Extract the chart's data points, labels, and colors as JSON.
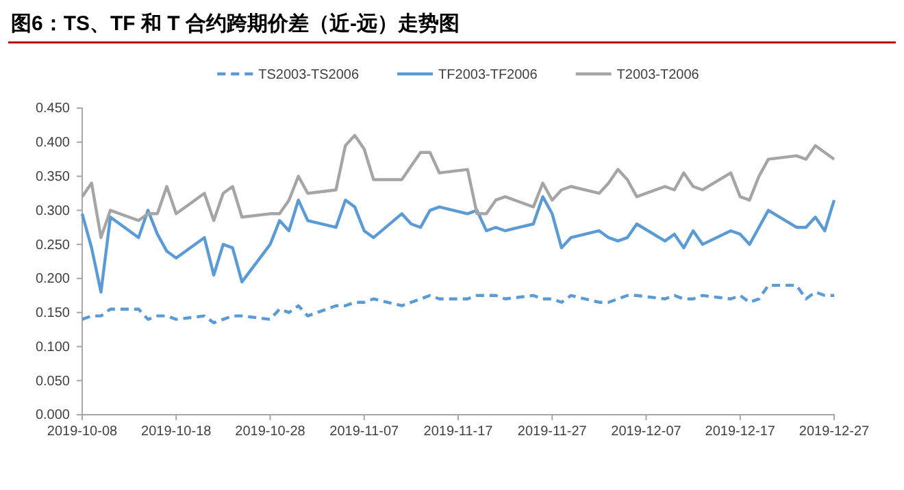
{
  "chart_data": {
    "type": "line",
    "title": "图6：TS、TF 和 T 合约跨期价差（近-远）走势图",
    "x": [
      "2019-10-08",
      "2019-10-09",
      "2019-10-10",
      "2019-10-11",
      "2019-10-14",
      "2019-10-15",
      "2019-10-16",
      "2019-10-17",
      "2019-10-18",
      "2019-10-21",
      "2019-10-22",
      "2019-10-23",
      "2019-10-24",
      "2019-10-25",
      "2019-10-28",
      "2019-10-29",
      "2019-10-30",
      "2019-10-31",
      "2019-11-01",
      "2019-11-04",
      "2019-11-05",
      "2019-11-06",
      "2019-11-07",
      "2019-11-08",
      "2019-11-11",
      "2019-11-12",
      "2019-11-13",
      "2019-11-14",
      "2019-11-15",
      "2019-11-18",
      "2019-11-19",
      "2019-11-20",
      "2019-11-21",
      "2019-11-22",
      "2019-11-25",
      "2019-11-26",
      "2019-11-27",
      "2019-11-28",
      "2019-11-29",
      "2019-12-02",
      "2019-12-03",
      "2019-12-04",
      "2019-12-05",
      "2019-12-06",
      "2019-12-09",
      "2019-12-10",
      "2019-12-11",
      "2019-12-12",
      "2019-12-13",
      "2019-12-16",
      "2019-12-17",
      "2019-12-18",
      "2019-12-19",
      "2019-12-20",
      "2019-12-23",
      "2019-12-24",
      "2019-12-25",
      "2019-12-26",
      "2019-12-27"
    ],
    "series": [
      {
        "name": "TS2003-TS2006",
        "color": "#5b9bd5",
        "line_style": "dashed",
        "values": [
          0.14,
          0.145,
          0.145,
          0.155,
          0.155,
          0.14,
          0.145,
          0.145,
          0.14,
          0.145,
          0.135,
          0.14,
          0.145,
          0.145,
          0.14,
          0.155,
          0.15,
          0.16,
          0.145,
          0.16,
          0.16,
          0.165,
          0.165,
          0.17,
          0.16,
          0.165,
          0.17,
          0.175,
          0.17,
          0.17,
          0.175,
          0.175,
          0.175,
          0.17,
          0.175,
          0.17,
          0.17,
          0.165,
          0.175,
          0.165,
          0.165,
          0.17,
          0.175,
          0.175,
          0.17,
          0.175,
          0.17,
          0.17,
          0.175,
          0.17,
          0.175,
          0.165,
          0.17,
          0.19,
          0.19,
          0.17,
          0.18,
          0.175,
          0.175
        ]
      },
      {
        "name": "TF2003-TF2006",
        "color": "#5b9bd5",
        "line_style": "solid",
        "values": [
          0.295,
          0.245,
          0.18,
          0.29,
          0.26,
          0.3,
          0.265,
          0.24,
          0.23,
          0.26,
          0.205,
          0.25,
          0.245,
          0.195,
          0.25,
          0.285,
          0.27,
          0.315,
          0.285,
          0.275,
          0.315,
          0.305,
          0.27,
          0.26,
          0.295,
          0.28,
          0.275,
          0.3,
          0.305,
          0.295,
          0.3,
          0.27,
          0.275,
          0.27,
          0.28,
          0.32,
          0.295,
          0.245,
          0.26,
          0.27,
          0.26,
          0.255,
          0.26,
          0.28,
          0.255,
          0.265,
          0.245,
          0.27,
          0.25,
          0.27,
          0.265,
          0.25,
          0.275,
          0.3,
          0.275,
          0.275,
          0.29,
          0.27,
          0.315
        ]
      },
      {
        "name": "T2003-T2006",
        "color": "#a5a5a5",
        "line_style": "solid",
        "values": [
          0.32,
          0.34,
          0.26,
          0.3,
          0.285,
          0.295,
          0.295,
          0.335,
          0.295,
          0.325,
          0.285,
          0.325,
          0.335,
          0.29,
          0.295,
          0.295,
          0.315,
          0.35,
          0.325,
          0.33,
          0.395,
          0.41,
          0.39,
          0.345,
          0.345,
          0.365,
          0.385,
          0.385,
          0.355,
          0.36,
          0.295,
          0.295,
          0.315,
          0.32,
          0.305,
          0.34,
          0.315,
          0.33,
          0.335,
          0.325,
          0.34,
          0.36,
          0.345,
          0.32,
          0.335,
          0.33,
          0.355,
          0.335,
          0.33,
          0.355,
          0.32,
          0.315,
          0.35,
          0.375,
          0.38,
          0.375,
          0.395,
          0.385,
          0.375
        ]
      }
    ],
    "xlim": [
      "2019-10-08",
      "2019-12-27"
    ],
    "xticks": [
      "2019-10-08",
      "2019-10-18",
      "2019-10-28",
      "2019-11-07",
      "2019-11-17",
      "2019-11-27",
      "2019-12-07",
      "2019-12-17",
      "2019-12-27"
    ],
    "ylim": [
      0,
      0.45
    ],
    "yticks": [
      {
        "value": 0,
        "label": "0.000"
      },
      {
        "value": 0.05,
        "label": "0.050"
      },
      {
        "value": 0.1,
        "label": "0.100"
      },
      {
        "value": 0.15,
        "label": "0.150"
      },
      {
        "value": 0.2,
        "label": "0.200"
      },
      {
        "value": 0.25,
        "label": "0.250"
      },
      {
        "value": 0.3,
        "label": "0.300"
      },
      {
        "value": 0.35,
        "label": "0.350"
      },
      {
        "value": 0.4,
        "label": "0.400"
      },
      {
        "value": 0.45,
        "label": "0.450"
      }
    ],
    "grid": false,
    "legend": "top"
  }
}
